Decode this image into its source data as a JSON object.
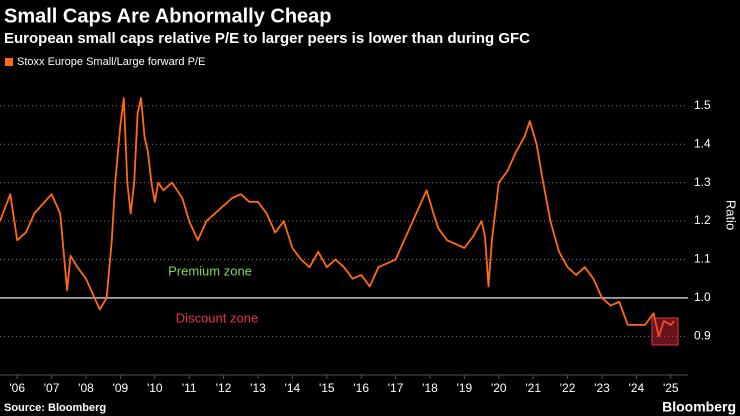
{
  "chart_data": {
    "type": "line",
    "title": "Small Caps Are Abnormally Cheap",
    "subtitle": "European small caps relative P/E to larger peers is lower than during GFC",
    "y_label": "Ratio",
    "source": "Source: Bloomberg",
    "brand": "Bloomberg",
    "annotations": [
      {
        "text": "Premium zone",
        "color": "#7ed957"
      },
      {
        "text": "Discount zone",
        "color": "#e8344a"
      }
    ],
    "reference_line": 1.0,
    "xlim": [
      2006,
      2026
    ],
    "ylim": [
      0.81,
      1.58
    ],
    "yticks": [
      {
        "value": 0.9,
        "label": "0.9"
      },
      {
        "value": 1.0,
        "label": "1.0"
      },
      {
        "value": 1.1,
        "label": "1.1"
      },
      {
        "value": 1.2,
        "label": "1.2"
      },
      {
        "value": 1.3,
        "label": "1.3"
      },
      {
        "value": 1.4,
        "label": "1.4"
      },
      {
        "value": 1.5,
        "label": "1.5"
      }
    ],
    "xticks": [
      {
        "value": 2006.5,
        "label": "'06"
      },
      {
        "value": 2007.5,
        "label": "'07"
      },
      {
        "value": 2008.5,
        "label": "'08"
      },
      {
        "value": 2009.5,
        "label": "'09"
      },
      {
        "value": 2010.5,
        "label": "'10"
      },
      {
        "value": 2011.5,
        "label": "'11"
      },
      {
        "value": 2012.5,
        "label": "'12"
      },
      {
        "value": 2013.5,
        "label": "'13"
      },
      {
        "value": 2014.5,
        "label": "'14"
      },
      {
        "value": 2015.5,
        "label": "'15"
      },
      {
        "value": 2016.5,
        "label": "'16"
      },
      {
        "value": 2017.5,
        "label": "'17"
      },
      {
        "value": 2018.5,
        "label": "'18"
      },
      {
        "value": 2019.5,
        "label": "'19"
      },
      {
        "value": 2020.5,
        "label": "'20"
      },
      {
        "value": 2021.5,
        "label": "'21"
      },
      {
        "value": 2022.5,
        "label": "'22"
      },
      {
        "value": 2023.5,
        "label": "'23"
      },
      {
        "value": 2024.5,
        "label": "'24"
      },
      {
        "value": 2025.5,
        "label": "'25"
      }
    ],
    "grid": true,
    "x": [
      2006.0,
      2006.3,
      2006.5,
      2006.75,
      2007.0,
      2007.3,
      2007.5,
      2007.75,
      2007.95,
      2008.05,
      2008.25,
      2008.5,
      2008.75,
      2008.9,
      2009.1,
      2009.25,
      2009.35,
      2009.5,
      2009.6,
      2009.7,
      2009.8,
      2009.9,
      2010.0,
      2010.1,
      2010.2,
      2010.3,
      2010.4,
      2010.5,
      2010.6,
      2010.75,
      2011.0,
      2011.3,
      2011.5,
      2011.75,
      2012.0,
      2012.25,
      2012.5,
      2012.75,
      2013.0,
      2013.25,
      2013.5,
      2013.75,
      2014.0,
      2014.25,
      2014.5,
      2014.75,
      2015.0,
      2015.25,
      2015.5,
      2015.75,
      2016.0,
      2016.25,
      2016.5,
      2016.75,
      2017.0,
      2017.25,
      2017.5,
      2017.75,
      2018.0,
      2018.25,
      2018.4,
      2018.6,
      2018.75,
      2019.0,
      2019.25,
      2019.5,
      2019.75,
      2020.0,
      2020.1,
      2020.2,
      2020.3,
      2020.5,
      2020.75,
      2021.0,
      2021.25,
      2021.4,
      2021.6,
      2021.75,
      2022.0,
      2022.25,
      2022.5,
      2022.75,
      2023.0,
      2023.25,
      2023.5,
      2023.75,
      2024.0,
      2024.25,
      2024.5,
      2024.75,
      2025.0,
      2025.15,
      2025.3,
      2025.5,
      2025.6
    ],
    "series": [
      {
        "name": "Stoxx Europe Small/Large forward P/E",
        "color": "#ff6a13",
        "values": [
          1.2,
          1.27,
          1.15,
          1.17,
          1.22,
          1.25,
          1.27,
          1.22,
          1.02,
          1.11,
          1.08,
          1.05,
          1.0,
          0.97,
          1.0,
          1.15,
          1.3,
          1.45,
          1.52,
          1.3,
          1.22,
          1.3,
          1.48,
          1.52,
          1.42,
          1.38,
          1.3,
          1.25,
          1.3,
          1.28,
          1.3,
          1.26,
          1.2,
          1.15,
          1.2,
          1.22,
          1.24,
          1.26,
          1.27,
          1.25,
          1.25,
          1.22,
          1.17,
          1.2,
          1.13,
          1.1,
          1.08,
          1.12,
          1.08,
          1.1,
          1.08,
          1.05,
          1.06,
          1.03,
          1.08,
          1.09,
          1.1,
          1.15,
          1.2,
          1.25,
          1.28,
          1.22,
          1.18,
          1.15,
          1.14,
          1.13,
          1.16,
          1.2,
          1.16,
          1.03,
          1.15,
          1.3,
          1.33,
          1.38,
          1.42,
          1.46,
          1.4,
          1.32,
          1.2,
          1.12,
          1.08,
          1.06,
          1.08,
          1.05,
          1.0,
          0.98,
          0.99,
          0.93,
          0.93,
          0.93,
          0.96,
          0.9,
          0.94,
          0.93,
          0.94
        ]
      }
    ]
  }
}
